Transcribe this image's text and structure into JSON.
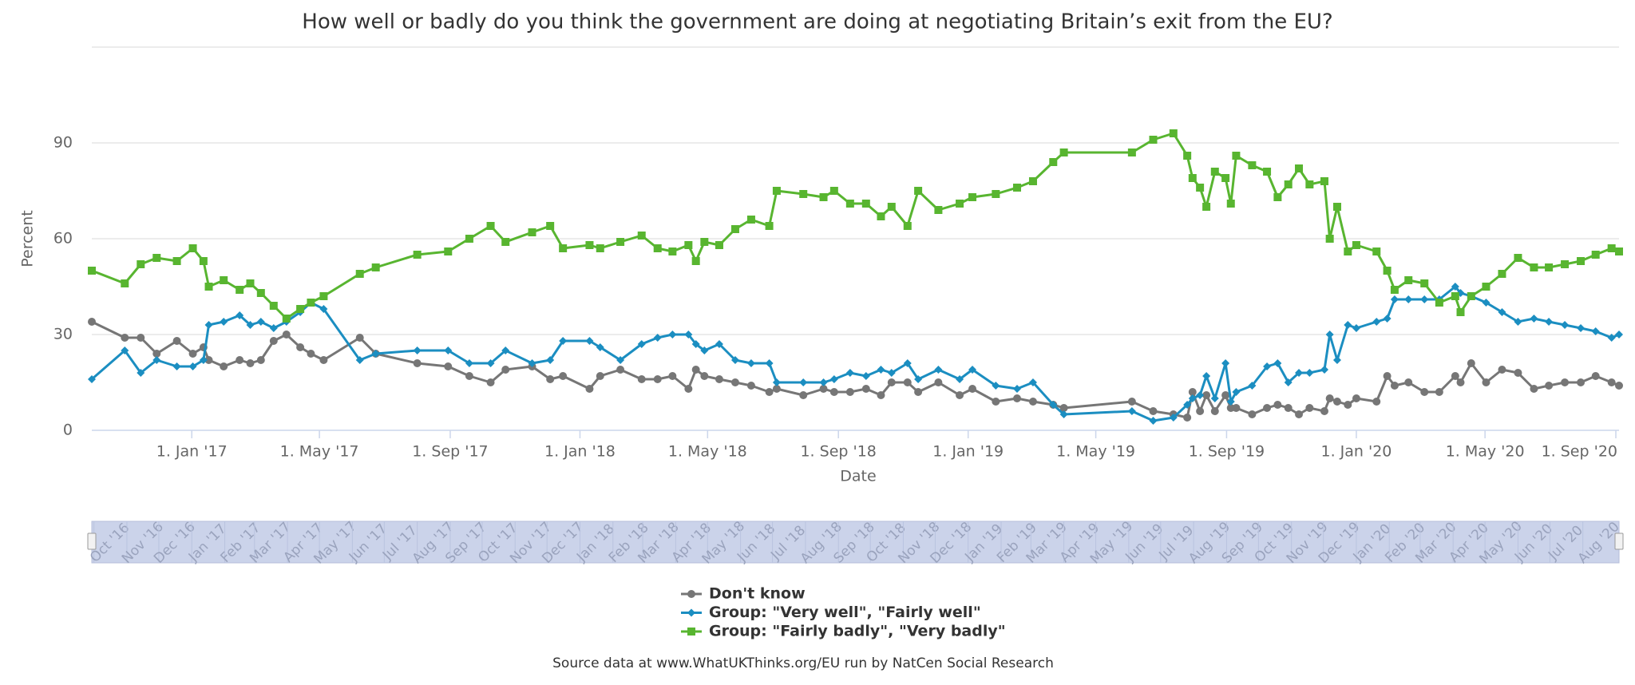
{
  "chart_data": {
    "type": "line",
    "title": "How well or badly do you think the government are doing at negotiating Britain’s exit from the EU?",
    "x_label": "Date",
    "y_label": "Percent",
    "source": "Source data at www.WhatUKThinks.org/EU run by NatCen Social Research",
    "grid": true,
    "xlim": [
      "2016-09-29",
      "2020-09-04"
    ],
    "xticks": [
      {
        "value": "2017-01-01",
        "label": "1. Jan '17"
      },
      {
        "value": "2017-05-01",
        "label": "1. May '17"
      },
      {
        "value": "2017-09-01",
        "label": "1. Sep '17"
      },
      {
        "value": "2018-01-01",
        "label": "1. Jan '18"
      },
      {
        "value": "2018-05-01",
        "label": "1. May '18"
      },
      {
        "value": "2018-09-01",
        "label": "1. Sep '18"
      },
      {
        "value": "2019-01-01",
        "label": "1. Jan '19"
      },
      {
        "value": "2019-05-01",
        "label": "1. May '19"
      },
      {
        "value": "2019-09-01",
        "label": "1. Sep '19"
      },
      {
        "value": "2020-01-01",
        "label": "1. Jan '20"
      },
      {
        "value": "2020-05-01",
        "label": "1. May '20"
      },
      {
        "value": "2020-09-01",
        "label": "1. Sep '20"
      }
    ],
    "ylim": [
      0,
      120
    ],
    "yticks": [
      0,
      30,
      60,
      90
    ],
    "x": [
      "2016-09-29",
      "2016-10-30",
      "2016-11-14",
      "2016-11-29",
      "2016-12-18",
      "2017-01-02",
      "2017-01-12",
      "2017-01-17",
      "2017-01-31",
      "2017-02-15",
      "2017-02-25",
      "2017-03-07",
      "2017-03-19",
      "2017-03-31",
      "2017-04-13",
      "2017-04-23",
      "2017-05-05",
      "2017-06-08",
      "2017-06-23",
      "2017-08-01",
      "2017-08-30",
      "2017-09-19",
      "2017-10-09",
      "2017-10-23",
      "2017-11-17",
      "2017-12-04",
      "2017-12-16",
      "2018-01-10",
      "2018-01-20",
      "2018-02-08",
      "2018-02-28",
      "2018-03-15",
      "2018-03-29",
      "2018-04-13",
      "2018-04-20",
      "2018-04-28",
      "2018-05-12",
      "2018-05-27",
      "2018-06-11",
      "2018-06-28",
      "2018-07-05",
      "2018-07-30",
      "2018-08-18",
      "2018-08-28",
      "2018-09-12",
      "2018-09-27",
      "2018-10-11",
      "2018-10-21",
      "2018-11-05",
      "2018-11-15",
      "2018-12-04",
      "2018-12-24",
      "2019-01-05",
      "2019-01-27",
      "2019-02-16",
      "2019-03-03",
      "2019-03-22",
      "2019-04-01",
      "2019-06-04",
      "2019-06-24",
      "2019-07-13",
      "2019-07-26",
      "2019-07-31",
      "2019-08-07",
      "2019-08-13",
      "2019-08-21",
      "2019-08-31",
      "2019-09-05",
      "2019-09-10",
      "2019-09-25",
      "2019-10-09",
      "2019-10-19",
      "2019-10-29",
      "2019-11-08",
      "2019-11-18",
      "2019-12-02",
      "2019-12-07",
      "2019-12-14",
      "2019-12-24",
      "2020-01-01",
      "2020-01-20",
      "2020-01-30",
      "2020-02-06",
      "2020-02-19",
      "2020-03-05",
      "2020-03-19",
      "2020-04-03",
      "2020-04-08",
      "2020-04-18",
      "2020-05-02",
      "2020-05-17",
      "2020-06-01",
      "2020-06-16",
      "2020-06-30",
      "2020-07-15",
      "2020-07-30",
      "2020-08-13",
      "2020-08-28",
      "2020-09-04"
    ],
    "series": [
      {
        "name": "Don't know",
        "color": "#767676",
        "marker": "circle",
        "values": [
          34,
          29,
          29,
          24,
          28,
          24,
          26,
          22,
          20,
          22,
          21,
          22,
          28,
          30,
          26,
          24,
          22,
          29,
          24,
          21,
          20,
          17,
          15,
          19,
          20,
          16,
          17,
          13,
          17,
          19,
          16,
          16,
          17,
          13,
          19,
          17,
          16,
          15,
          14,
          12,
          13,
          11,
          13,
          12,
          12,
          13,
          11,
          15,
          15,
          12,
          15,
          11,
          13,
          9,
          10,
          9,
          8,
          7,
          9,
          6,
          5,
          4,
          12,
          6,
          11,
          6,
          11,
          7,
          7,
          5,
          7,
          8,
          7,
          5,
          7,
          6,
          10,
          9,
          8,
          10,
          9,
          17,
          14,
          15,
          12,
          12,
          17,
          15,
          21,
          15,
          19,
          18,
          13,
          14,
          15,
          15,
          17,
          15,
          14
        ]
      },
      {
        "name": "Group: \"Very well\", \"Fairly well\"",
        "color": "#1b8ec1",
        "marker": "diamond",
        "values": [
          16,
          25,
          18,
          22,
          20,
          20,
          22,
          33,
          34,
          36,
          33,
          34,
          32,
          34,
          37,
          40,
          38,
          22,
          24,
          25,
          25,
          21,
          21,
          25,
          21,
          22,
          28,
          28,
          26,
          22,
          27,
          29,
          30,
          30,
          27,
          25,
          27,
          22,
          21,
          21,
          15,
          15,
          15,
          16,
          18,
          17,
          19,
          18,
          21,
          16,
          19,
          16,
          19,
          14,
          13,
          15,
          8,
          5,
          6,
          3,
          4,
          8,
          10,
          11,
          17,
          10,
          21,
          9,
          12,
          14,
          20,
          21,
          15,
          18,
          18,
          19,
          30,
          22,
          33,
          32,
          34,
          35,
          41,
          41,
          41,
          41,
          45,
          43,
          42,
          40,
          37,
          34,
          35,
          34,
          33,
          32,
          31,
          29,
          30
        ]
      },
      {
        "name": "Group: \"Fairly badly\", \"Very badly\"",
        "color": "#58b530",
        "marker": "square",
        "values": [
          50,
          46,
          52,
          54,
          53,
          57,
          53,
          45,
          47,
          44,
          46,
          43,
          39,
          35,
          38,
          40,
          42,
          49,
          51,
          55,
          56,
          60,
          64,
          59,
          62,
          64,
          57,
          58,
          57,
          59,
          61,
          57,
          56,
          58,
          53,
          59,
          58,
          63,
          66,
          64,
          75,
          74,
          73,
          75,
          71,
          71,
          67,
          70,
          64,
          75,
          69,
          71,
          73,
          74,
          76,
          78,
          84,
          87,
          87,
          91,
          93,
          86,
          79,
          76,
          70,
          81,
          79,
          71,
          86,
          83,
          81,
          73,
          77,
          82,
          77,
          78,
          60,
          70,
          56,
          58,
          56,
          50,
          44,
          47,
          46,
          40,
          42,
          37,
          42,
          45,
          49,
          54,
          51,
          51,
          52,
          53,
          55,
          57,
          56
        ]
      }
    ],
    "navigator_labels": [
      "Oct '16",
      "Nov '16",
      "Dec '16",
      "Jan '17",
      "Feb '17",
      "Mar '17",
      "Apr '17",
      "May '17",
      "Jun '17",
      "Jul '17",
      "Aug '17",
      "Sep '17",
      "Oct '17",
      "Nov '17",
      "Dec '17",
      "Jan '18",
      "Feb '18",
      "Mar '18",
      "Apr '18",
      "May '18",
      "Jun '18",
      "Jul '18",
      "Aug '18",
      "Sep '18",
      "Oct '18",
      "Nov '18",
      "Dec '18",
      "Jan '19",
      "Feb '19",
      "Mar '19",
      "Apr '19",
      "May '19",
      "Jun '19",
      "Jul '19",
      "Aug '19",
      "Sep '19",
      "Oct '19",
      "Nov '19",
      "Dec '19",
      "Jan '20",
      "Feb '20",
      "Mar '20",
      "Apr '20",
      "May '20",
      "Jun '20",
      "Jul '20",
      "Aug '20"
    ]
  }
}
